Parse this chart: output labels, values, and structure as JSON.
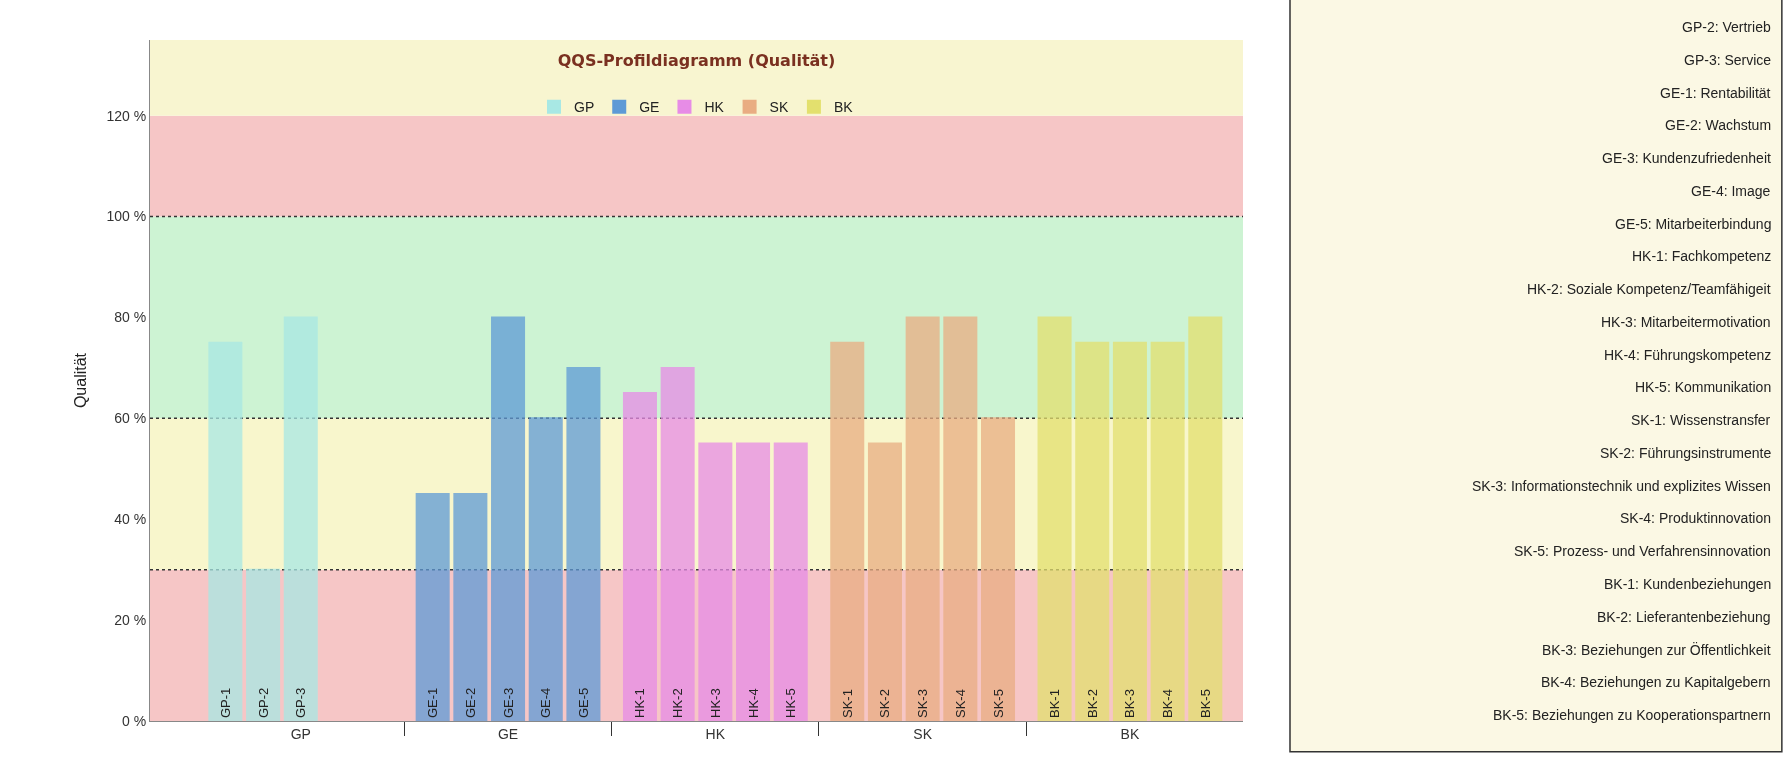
{
  "chart_data": {
    "type": "bar",
    "title": "QQS-Profildiagramm (Qualität)",
    "ylabel": "Qualität",
    "categories": [
      "GP-1",
      "GP-2",
      "GP-3",
      "GE-1",
      "GE-2",
      "GE-3",
      "GE-4",
      "GE-5",
      "HK-1",
      "HK-2",
      "HK-3",
      "HK-4",
      "HK-5",
      "SK-1",
      "SK-2",
      "SK-3",
      "SK-4",
      "SK-5",
      "BK-1",
      "BK-2",
      "BK-3",
      "BK-4",
      "BK-5"
    ],
    "series": [
      {
        "name": "GP",
        "color": "#a8e8e4",
        "values": [
          75,
          30,
          80,
          null,
          null,
          null,
          null,
          null,
          null,
          null,
          null,
          null,
          null,
          null,
          null,
          null,
          null,
          null,
          null,
          null,
          null,
          null,
          null
        ]
      },
      {
        "name": "GE",
        "color": "#5e9ad6",
        "values": [
          null,
          null,
          null,
          45,
          45,
          80,
          60,
          70,
          null,
          null,
          null,
          null,
          null,
          null,
          null,
          null,
          null,
          null,
          null,
          null,
          null,
          null,
          null
        ]
      },
      {
        "name": "HK",
        "color": "#e78ce6",
        "values": [
          null,
          null,
          null,
          null,
          null,
          null,
          null,
          null,
          65,
          70,
          55,
          55,
          55,
          null,
          null,
          null,
          null,
          null,
          null,
          null,
          null,
          null,
          null
        ]
      },
      {
        "name": "SK",
        "color": "#e9ad82",
        "values": [
          null,
          null,
          null,
          null,
          null,
          null,
          null,
          null,
          null,
          null,
          null,
          null,
          null,
          75,
          55,
          80,
          80,
          60,
          null,
          null,
          null,
          null,
          null
        ]
      },
      {
        "name": "BK",
        "color": "#e3e06e",
        "values": [
          null,
          null,
          null,
          null,
          null,
          null,
          null,
          null,
          null,
          null,
          null,
          null,
          null,
          null,
          null,
          null,
          null,
          null,
          80,
          75,
          75,
          75,
          80
        ]
      }
    ],
    "ylim": [
      0,
      135
    ],
    "yticks": [
      {
        "value": 0,
        "label": "0 %"
      },
      {
        "value": 20,
        "label": "20 %"
      },
      {
        "value": 40,
        "label": "40 %"
      },
      {
        "value": 60,
        "label": "60 %"
      },
      {
        "value": 80,
        "label": "80 %"
      },
      {
        "value": 100,
        "label": "100 %"
      },
      {
        "value": 120,
        "label": "120 %"
      }
    ],
    "bands": [
      {
        "axis": "y",
        "from": 0,
        "to": 30,
        "color": "#f6c6c6"
      },
      {
        "axis": "y",
        "from": 30,
        "to": 60,
        "color": "#f8f6cc"
      },
      {
        "axis": "y",
        "from": 60,
        "to": 100,
        "color": "#cdf3d3"
      },
      {
        "axis": "y",
        "from": 100,
        "to": 120,
        "color": "#f6c6c6"
      },
      {
        "axis": "y",
        "from": 120,
        "to": 135,
        "color": "#f8f5d0"
      }
    ],
    "ref_lines": [
      {
        "axis": "y",
        "value": 30,
        "color": "#333333",
        "line_style": "dotted"
      },
      {
        "axis": "y",
        "value": 60,
        "color": "#333333",
        "line_style": "dotted"
      },
      {
        "axis": "y",
        "value": 100,
        "color": "#333333",
        "line_style": "dotted"
      }
    ],
    "annotations": [
      "GP-2: Vertrieb",
      "GP-3: Service",
      "GE-1: Rentabilität",
      "GE-2: Wachstum",
      "GE-3: Kundenzufriedenheit",
      "GE-4: Image",
      "GE-5: Mitarbeiterbindung",
      "HK-1: Fachkompetenz",
      "HK-2: Soziale Kompetenz/Teamfähigeit",
      "HK-3: Mitarbeitermotivation",
      "HK-4: Führungskompetenz",
      "HK-5: Kommunikation",
      "SK-1: Wissenstransfer",
      "SK-2: Führungsinstrumente",
      "SK-3: Informationstechnik und explizites Wissen",
      "SK-4: Produktinnovation",
      "SK-5: Prozess- und Verfahrensinnovation",
      "BK-1: Kundenbeziehungen",
      "BK-2: Lieferantenbeziehung",
      "BK-3: Beziehungen zur Öffentlichkeit",
      "BK-4: Beziehungen zu Kapitalgebern",
      "BK-5: Beziehungen zu Kooperationspartnern"
    ],
    "legend": "top",
    "grid": false
  }
}
